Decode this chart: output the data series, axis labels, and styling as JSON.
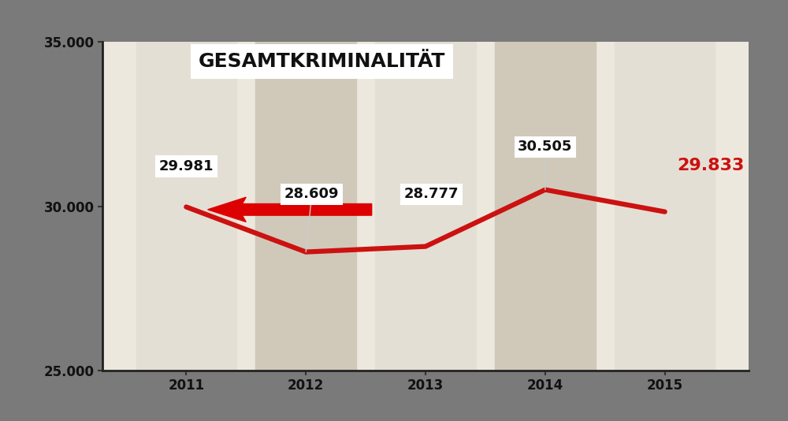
{
  "title": "GESAMTKRIMINALITÄT",
  "years": [
    2011,
    2012,
    2013,
    2014,
    2015
  ],
  "values": [
    29981,
    28609,
    28777,
    30505,
    29833
  ],
  "labels": [
    "29.981",
    "28.609",
    "28.777",
    "30.505",
    "29.833"
  ],
  "ylim": [
    25000,
    35000
  ],
  "yticks": [
    25000,
    30000,
    35000
  ],
  "ytick_labels": [
    "25.000",
    "30.000",
    "35.000"
  ],
  "line_color": "#cc1111",
  "line_width": 4.5,
  "bg_color": "#ede8dd",
  "stripe_dark": "#d0c9ba",
  "stripe_light": "#e4dfd4",
  "paper_bg": "#f2eed6",
  "outer_bg": "#7a7a7a",
  "arrow_color": "#dd0000",
  "last_label_color": "#cc1111",
  "font_color": "#111111",
  "label_bg": "#ffffff",
  "title_bg": "#ffffff"
}
